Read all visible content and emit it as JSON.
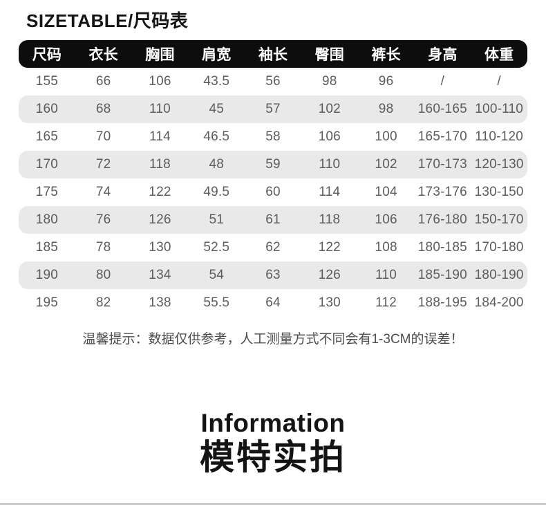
{
  "title": "SIZETABLE/尺码表",
  "table": {
    "headers": [
      "尺码",
      "衣长",
      "胸围",
      "肩宽",
      "袖长",
      "臀围",
      "裤长",
      "身高",
      "体重"
    ],
    "rows": [
      [
        "155",
        "66",
        "106",
        "43.5",
        "56",
        "98",
        "96",
        "/",
        "/"
      ],
      [
        "160",
        "68",
        "110",
        "45",
        "57",
        "102",
        "98",
        "160-165",
        "100-110"
      ],
      [
        "165",
        "70",
        "114",
        "46.5",
        "58",
        "106",
        "100",
        "165-170",
        "110-120"
      ],
      [
        "170",
        "72",
        "118",
        "48",
        "59",
        "110",
        "102",
        "170-173",
        "120-130"
      ],
      [
        "175",
        "74",
        "122",
        "49.5",
        "60",
        "114",
        "104",
        "173-176",
        "130-150"
      ],
      [
        "180",
        "76",
        "126",
        "51",
        "61",
        "118",
        "106",
        "176-180",
        "150-170"
      ],
      [
        "185",
        "78",
        "130",
        "52.5",
        "62",
        "122",
        "108",
        "180-185",
        "170-180"
      ],
      [
        "190",
        "80",
        "134",
        "54",
        "63",
        "126",
        "110",
        "185-190",
        "180-190"
      ],
      [
        "195",
        "82",
        "138",
        "55.5",
        "64",
        "130",
        "112",
        "188-195",
        "184-200"
      ]
    ]
  },
  "note": "温馨提示：数据仅供参考，人工测量方式不同会有1-3CM的误差！",
  "section": {
    "en_title": "Information",
    "zh_title": "模特实拍"
  },
  "colors": {
    "header_bg": "#0d0d0d",
    "header_text": "#ffffff",
    "row_alt_bg": "#e9e9e9",
    "cell_text": "#5c5c5c",
    "heading_text": "#141414"
  }
}
